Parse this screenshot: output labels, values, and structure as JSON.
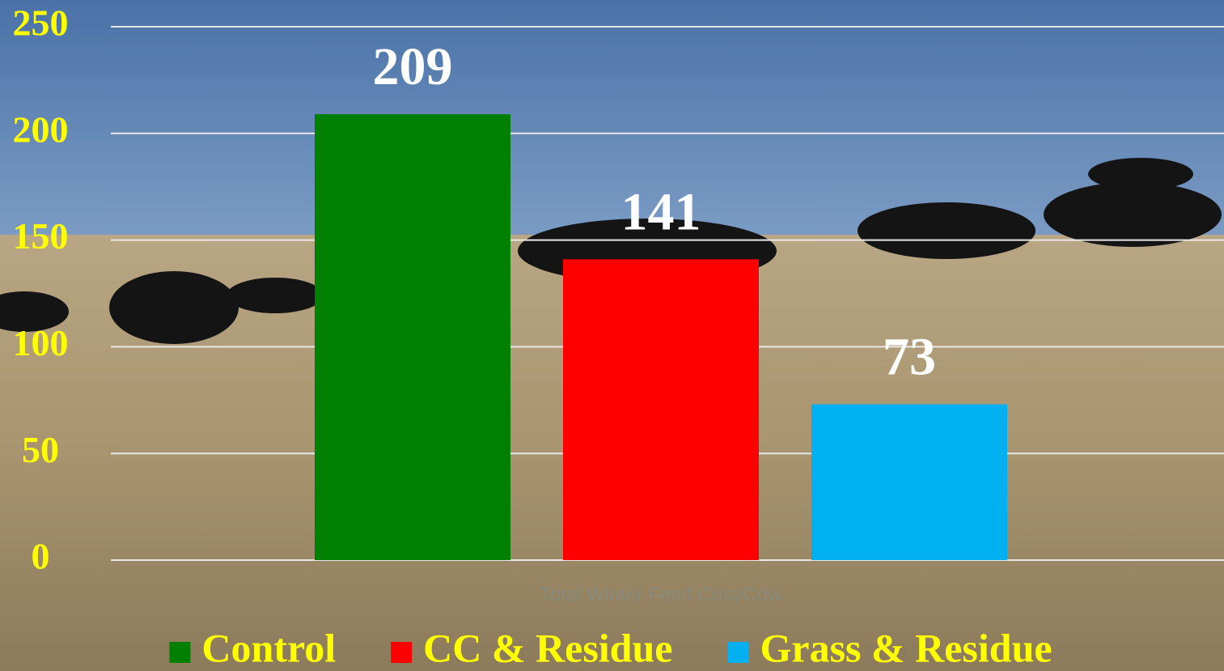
{
  "chart_data": {
    "type": "bar",
    "categories": [
      "Total Winter Feed Cost/Cow"
    ],
    "series": [
      {
        "name": "Control",
        "color": "#008000",
        "values": [
          209
        ]
      },
      {
        "name": "CC & Residue",
        "color": "#ff0000",
        "values": [
          141
        ]
      },
      {
        "name": "Grass & Residue",
        "color": "#00b0f0",
        "values": [
          73
        ]
      }
    ],
    "ylim": [
      0,
      250
    ],
    "yticks": [
      0,
      50,
      100,
      150,
      200,
      250
    ],
    "grid": true,
    "legend": "bottom"
  }
}
